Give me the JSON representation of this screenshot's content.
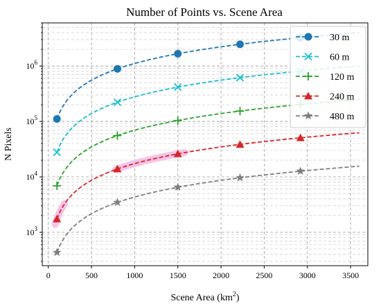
{
  "chart_data": {
    "type": "line",
    "title": "Number of Points vs. Scene Area",
    "xlabel": "Scene Area (km",
    "xlabel_sup": "2",
    "xlabel_end": ")",
    "ylabel": "N Pixels",
    "y_scale": "log",
    "xlim": [
      -70,
      3700
    ],
    "ylim": [
      250,
      6000000
    ],
    "x_ticks": [
      0,
      500,
      1000,
      1500,
      2000,
      2500,
      3000,
      3500
    ],
    "x_tick_labels": [
      "0",
      "500",
      "1000",
      "1500",
      "2000",
      "2500",
      "3000",
      "3500"
    ],
    "y_ticks": [
      1000,
      10000,
      100000,
      1000000
    ],
    "y_tick_bases": [
      "10",
      "10",
      "10",
      "10"
    ],
    "y_tick_exps": [
      "3",
      "4",
      "5",
      "6"
    ],
    "grid": true,
    "legend_position": "top-right",
    "curve_x_range": [
      100,
      3600
    ],
    "marker_x": [
      100,
      800,
      1500,
      2220,
      2920
    ],
    "series": [
      {
        "name": "30 m",
        "color": "#1f77b4",
        "marker": "circle",
        "markers_y": [
          111000,
          889000,
          1667000,
          2467000,
          3244000
        ],
        "curve_end_y": 4000000
      },
      {
        "name": "60 m",
        "color": "#17becf",
        "marker": "x",
        "markers_y": [
          27800,
          222000,
          417000,
          617000,
          811000
        ],
        "curve_end_y": 1000000
      },
      {
        "name": "120 m",
        "color": "#2ca02c",
        "marker": "plus",
        "markers_y": [
          6900,
          55600,
          104000,
          154000,
          203000
        ],
        "curve_end_y": 250000
      },
      {
        "name": "240 m",
        "color": "#d62728",
        "marker": "triangle",
        "markers_y": [
          1740,
          13900,
          26000,
          38500,
          50700
        ],
        "curve_end_y": 62500
      },
      {
        "name": "480 m",
        "color": "#7f7f7f",
        "marker": "star",
        "markers_y": [
          434,
          3470,
          6510,
          9640,
          12700
        ],
        "curve_end_y": 15600
      }
    ]
  }
}
